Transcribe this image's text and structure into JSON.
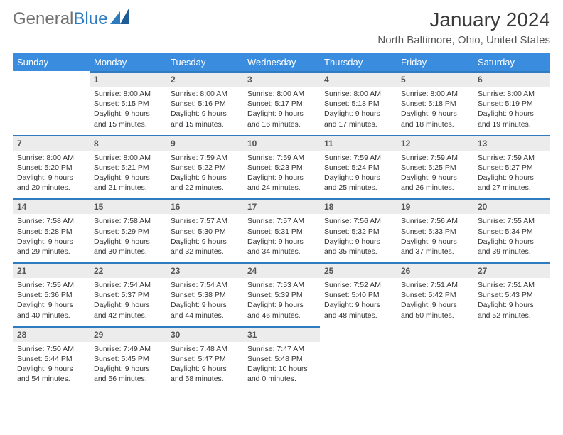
{
  "brand": {
    "name_a": "General",
    "name_b": "Blue"
  },
  "title": "January 2024",
  "location": "North Baltimore, Ohio, United States",
  "colors": {
    "header_bg": "#3a8dde",
    "header_fg": "#ffffff",
    "daynum_bg": "#ececec",
    "daynum_border": "#2f7bbf",
    "text": "#333333",
    "brand_gray": "#707070",
    "brand_blue": "#2f7bbf",
    "page_bg": "#ffffff"
  },
  "weekdays": [
    "Sunday",
    "Monday",
    "Tuesday",
    "Wednesday",
    "Thursday",
    "Friday",
    "Saturday"
  ],
  "weeks": [
    [
      {
        "n": "",
        "lines": []
      },
      {
        "n": "1",
        "lines": [
          "Sunrise: 8:00 AM",
          "Sunset: 5:15 PM",
          "Daylight: 9 hours",
          "and 15 minutes."
        ]
      },
      {
        "n": "2",
        "lines": [
          "Sunrise: 8:00 AM",
          "Sunset: 5:16 PM",
          "Daylight: 9 hours",
          "and 15 minutes."
        ]
      },
      {
        "n": "3",
        "lines": [
          "Sunrise: 8:00 AM",
          "Sunset: 5:17 PM",
          "Daylight: 9 hours",
          "and 16 minutes."
        ]
      },
      {
        "n": "4",
        "lines": [
          "Sunrise: 8:00 AM",
          "Sunset: 5:18 PM",
          "Daylight: 9 hours",
          "and 17 minutes."
        ]
      },
      {
        "n": "5",
        "lines": [
          "Sunrise: 8:00 AM",
          "Sunset: 5:18 PM",
          "Daylight: 9 hours",
          "and 18 minutes."
        ]
      },
      {
        "n": "6",
        "lines": [
          "Sunrise: 8:00 AM",
          "Sunset: 5:19 PM",
          "Daylight: 9 hours",
          "and 19 minutes."
        ]
      }
    ],
    [
      {
        "n": "7",
        "lines": [
          "Sunrise: 8:00 AM",
          "Sunset: 5:20 PM",
          "Daylight: 9 hours",
          "and 20 minutes."
        ]
      },
      {
        "n": "8",
        "lines": [
          "Sunrise: 8:00 AM",
          "Sunset: 5:21 PM",
          "Daylight: 9 hours",
          "and 21 minutes."
        ]
      },
      {
        "n": "9",
        "lines": [
          "Sunrise: 7:59 AM",
          "Sunset: 5:22 PM",
          "Daylight: 9 hours",
          "and 22 minutes."
        ]
      },
      {
        "n": "10",
        "lines": [
          "Sunrise: 7:59 AM",
          "Sunset: 5:23 PM",
          "Daylight: 9 hours",
          "and 24 minutes."
        ]
      },
      {
        "n": "11",
        "lines": [
          "Sunrise: 7:59 AM",
          "Sunset: 5:24 PM",
          "Daylight: 9 hours",
          "and 25 minutes."
        ]
      },
      {
        "n": "12",
        "lines": [
          "Sunrise: 7:59 AM",
          "Sunset: 5:25 PM",
          "Daylight: 9 hours",
          "and 26 minutes."
        ]
      },
      {
        "n": "13",
        "lines": [
          "Sunrise: 7:59 AM",
          "Sunset: 5:27 PM",
          "Daylight: 9 hours",
          "and 27 minutes."
        ]
      }
    ],
    [
      {
        "n": "14",
        "lines": [
          "Sunrise: 7:58 AM",
          "Sunset: 5:28 PM",
          "Daylight: 9 hours",
          "and 29 minutes."
        ]
      },
      {
        "n": "15",
        "lines": [
          "Sunrise: 7:58 AM",
          "Sunset: 5:29 PM",
          "Daylight: 9 hours",
          "and 30 minutes."
        ]
      },
      {
        "n": "16",
        "lines": [
          "Sunrise: 7:57 AM",
          "Sunset: 5:30 PM",
          "Daylight: 9 hours",
          "and 32 minutes."
        ]
      },
      {
        "n": "17",
        "lines": [
          "Sunrise: 7:57 AM",
          "Sunset: 5:31 PM",
          "Daylight: 9 hours",
          "and 34 minutes."
        ]
      },
      {
        "n": "18",
        "lines": [
          "Sunrise: 7:56 AM",
          "Sunset: 5:32 PM",
          "Daylight: 9 hours",
          "and 35 minutes."
        ]
      },
      {
        "n": "19",
        "lines": [
          "Sunrise: 7:56 AM",
          "Sunset: 5:33 PM",
          "Daylight: 9 hours",
          "and 37 minutes."
        ]
      },
      {
        "n": "20",
        "lines": [
          "Sunrise: 7:55 AM",
          "Sunset: 5:34 PM",
          "Daylight: 9 hours",
          "and 39 minutes."
        ]
      }
    ],
    [
      {
        "n": "21",
        "lines": [
          "Sunrise: 7:55 AM",
          "Sunset: 5:36 PM",
          "Daylight: 9 hours",
          "and 40 minutes."
        ]
      },
      {
        "n": "22",
        "lines": [
          "Sunrise: 7:54 AM",
          "Sunset: 5:37 PM",
          "Daylight: 9 hours",
          "and 42 minutes."
        ]
      },
      {
        "n": "23",
        "lines": [
          "Sunrise: 7:54 AM",
          "Sunset: 5:38 PM",
          "Daylight: 9 hours",
          "and 44 minutes."
        ]
      },
      {
        "n": "24",
        "lines": [
          "Sunrise: 7:53 AM",
          "Sunset: 5:39 PM",
          "Daylight: 9 hours",
          "and 46 minutes."
        ]
      },
      {
        "n": "25",
        "lines": [
          "Sunrise: 7:52 AM",
          "Sunset: 5:40 PM",
          "Daylight: 9 hours",
          "and 48 minutes."
        ]
      },
      {
        "n": "26",
        "lines": [
          "Sunrise: 7:51 AM",
          "Sunset: 5:42 PM",
          "Daylight: 9 hours",
          "and 50 minutes."
        ]
      },
      {
        "n": "27",
        "lines": [
          "Sunrise: 7:51 AM",
          "Sunset: 5:43 PM",
          "Daylight: 9 hours",
          "and 52 minutes."
        ]
      }
    ],
    [
      {
        "n": "28",
        "lines": [
          "Sunrise: 7:50 AM",
          "Sunset: 5:44 PM",
          "Daylight: 9 hours",
          "and 54 minutes."
        ]
      },
      {
        "n": "29",
        "lines": [
          "Sunrise: 7:49 AM",
          "Sunset: 5:45 PM",
          "Daylight: 9 hours",
          "and 56 minutes."
        ]
      },
      {
        "n": "30",
        "lines": [
          "Sunrise: 7:48 AM",
          "Sunset: 5:47 PM",
          "Daylight: 9 hours",
          "and 58 minutes."
        ]
      },
      {
        "n": "31",
        "lines": [
          "Sunrise: 7:47 AM",
          "Sunset: 5:48 PM",
          "Daylight: 10 hours",
          "and 0 minutes."
        ]
      },
      {
        "n": "",
        "lines": []
      },
      {
        "n": "",
        "lines": []
      },
      {
        "n": "",
        "lines": []
      }
    ]
  ]
}
